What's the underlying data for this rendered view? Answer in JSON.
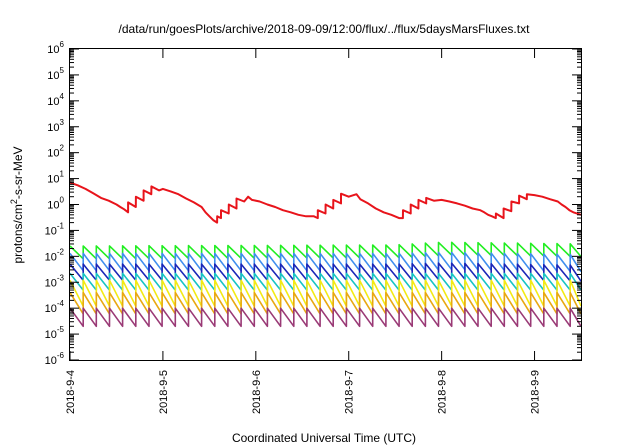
{
  "chart_data": {
    "type": "line",
    "title": "/data/run/goesPlots/archive/2018-09-09/12:00/flux/../flux/5daysMarsFluxes.txt",
    "xlabel": "Coordinated Universal Time (UTC)",
    "ylabel": "protons/cm2-s-sr-MeV",
    "ylabel_parts": {
      "base": "protons/cm",
      "sup": "2",
      "rest": "-s-sr-MeV"
    },
    "y_scale": "log",
    "ylim": [
      1e-06,
      1000000.0
    ],
    "xlim": [
      "2018-09-04T00:00",
      "2018-09-09T12:00"
    ],
    "grid": false,
    "legend": "none",
    "x_ticks": [
      {
        "x": "2018-09-04T00:00",
        "label": "2018-9-4"
      },
      {
        "x": "2018-09-05T00:00",
        "label": "2018-9-5"
      },
      {
        "x": "2018-09-06T00:00",
        "label": "2018-9-6"
      },
      {
        "x": "2018-09-07T00:00",
        "label": "2018-9-7"
      },
      {
        "x": "2018-09-08T00:00",
        "label": "2018-9-8"
      },
      {
        "x": "2018-09-09T00:00",
        "label": "2018-9-9"
      }
    ],
    "y_ticks": [
      {
        "y": 1e-06,
        "base": "10",
        "exp": "-6"
      },
      {
        "y": 1e-05,
        "base": "10",
        "exp": "-5"
      },
      {
        "y": 0.0001,
        "base": "10",
        "exp": "-4"
      },
      {
        "y": 0.001,
        "base": "10",
        "exp": "-3"
      },
      {
        "y": 0.01,
        "base": "10",
        "exp": "-2"
      },
      {
        "y": 0.1,
        "base": "10",
        "exp": "-1"
      },
      {
        "y": 1,
        "base": "10",
        "exp": "0"
      },
      {
        "y": 10,
        "base": "10",
        "exp": "1"
      },
      {
        "y": 100,
        "base": "10",
        "exp": "2"
      },
      {
        "y": 1000.0,
        "base": "10",
        "exp": "3"
      },
      {
        "y": 10000.0,
        "base": "10",
        "exp": "4"
      },
      {
        "y": 100000.0,
        "base": "10",
        "exp": "5"
      },
      {
        "y": 1000000.0,
        "base": "10",
        "exp": "6"
      }
    ],
    "series": [
      {
        "color": "#e8141b",
        "points": [
          [
            "2018-09-04T00:00",
            7
          ],
          [
            "2018-09-04T02:00",
            5.5
          ],
          [
            "2018-09-04T04:00",
            4
          ],
          [
            "2018-09-04T06:00",
            2.7
          ],
          [
            "2018-09-04T08:00",
            1.8
          ],
          [
            "2018-09-04T10:00",
            1.4
          ],
          [
            "2018-09-04T12:00",
            1
          ],
          [
            "2018-09-04T13:00",
            0.8
          ],
          [
            "2018-09-04T14:00",
            0.65
          ],
          [
            "2018-09-04T15:00",
            0.5
          ],
          [
            "2018-09-04T15:01",
            1.2
          ],
          [
            "2018-09-04T17:00",
            0.8
          ],
          [
            "2018-09-04T17:01",
            2
          ],
          [
            "2018-09-04T19:00",
            1.4
          ],
          [
            "2018-09-04T19:01",
            3.5
          ],
          [
            "2018-09-04T21:00",
            2.5
          ],
          [
            "2018-09-04T21:01",
            5
          ],
          [
            "2018-09-04T23:00",
            3.5
          ],
          [
            "2018-09-05T00:00",
            4
          ],
          [
            "2018-09-05T02:00",
            3.2
          ],
          [
            "2018-09-05T04:00",
            2.5
          ],
          [
            "2018-09-05T06:00",
            1.7
          ],
          [
            "2018-09-05T08:00",
            1.2
          ],
          [
            "2018-09-05T10:00",
            0.8
          ],
          [
            "2018-09-05T11:00",
            0.5
          ],
          [
            "2018-09-05T12:00",
            0.35
          ],
          [
            "2018-09-05T13:00",
            0.25
          ],
          [
            "2018-09-05T14:00",
            0.2
          ],
          [
            "2018-09-05T14:01",
            0.35
          ],
          [
            "2018-09-05T15:00",
            0.3
          ],
          [
            "2018-09-05T15:01",
            0.6
          ],
          [
            "2018-09-05T17:00",
            0.45
          ],
          [
            "2018-09-05T17:01",
            1
          ],
          [
            "2018-09-05T19:00",
            0.7
          ],
          [
            "2018-09-05T19:01",
            1.7
          ],
          [
            "2018-09-05T21:00",
            1.3
          ],
          [
            "2018-09-05T22:00",
            2
          ],
          [
            "2018-09-05T23:00",
            1.5
          ],
          [
            "2018-09-06T01:00",
            1.3
          ],
          [
            "2018-09-06T03:00",
            1
          ],
          [
            "2018-09-06T05:00",
            0.8
          ],
          [
            "2018-09-06T07:00",
            0.6
          ],
          [
            "2018-09-06T09:00",
            0.5
          ],
          [
            "2018-09-06T11:00",
            0.4
          ],
          [
            "2018-09-06T13:00",
            0.35
          ],
          [
            "2018-09-06T15:00",
            0.35
          ],
          [
            "2018-09-06T16:00",
            0.3
          ],
          [
            "2018-09-06T16:01",
            0.6
          ],
          [
            "2018-09-06T18:00",
            0.45
          ],
          [
            "2018-09-06T18:01",
            1
          ],
          [
            "2018-09-06T20:00",
            0.7
          ],
          [
            "2018-09-06T20:01",
            1.5
          ],
          [
            "2018-09-06T22:00",
            1.1
          ],
          [
            "2018-09-06T22:01",
            2.6
          ],
          [
            "2018-09-07T00:00",
            2
          ],
          [
            "2018-09-07T02:00",
            2.5
          ],
          [
            "2018-09-07T03:00",
            1.6
          ],
          [
            "2018-09-07T05:00",
            1.1
          ],
          [
            "2018-09-07T07:00",
            0.7
          ],
          [
            "2018-09-07T09:00",
            0.5
          ],
          [
            "2018-09-07T11:00",
            0.4
          ],
          [
            "2018-09-07T13:00",
            0.3
          ],
          [
            "2018-09-07T14:00",
            0.3
          ],
          [
            "2018-09-07T14:01",
            0.6
          ],
          [
            "2018-09-07T16:00",
            0.45
          ],
          [
            "2018-09-07T16:01",
            1
          ],
          [
            "2018-09-07T18:00",
            0.7
          ],
          [
            "2018-09-07T18:01",
            1.5
          ],
          [
            "2018-09-07T20:00",
            1.1
          ],
          [
            "2018-09-07T20:01",
            1.8
          ],
          [
            "2018-09-07T22:00",
            1.4
          ],
          [
            "2018-09-08T00:00",
            1.5
          ],
          [
            "2018-09-08T02:00",
            1.3
          ],
          [
            "2018-09-08T04:00",
            1.1
          ],
          [
            "2018-09-08T06:00",
            0.9
          ],
          [
            "2018-09-08T08:00",
            0.7
          ],
          [
            "2018-09-08T10:00",
            0.6
          ],
          [
            "2018-09-08T11:00",
            0.5
          ],
          [
            "2018-09-08T12:00",
            0.4
          ],
          [
            "2018-09-08T13:00",
            0.35
          ],
          [
            "2018-09-08T14:00",
            0.3
          ],
          [
            "2018-09-08T14:01",
            0.45
          ],
          [
            "2018-09-08T16:00",
            0.3
          ],
          [
            "2018-09-08T16:01",
            0.7
          ],
          [
            "2018-09-08T18:00",
            0.55
          ],
          [
            "2018-09-08T18:01",
            1.3
          ],
          [
            "2018-09-08T20:00",
            1.1
          ],
          [
            "2018-09-08T20:01",
            2.2
          ],
          [
            "2018-09-08T22:00",
            1.6
          ],
          [
            "2018-09-08T22:01",
            2.5
          ],
          [
            "2018-09-09T00:00",
            2.3
          ],
          [
            "2018-09-09T02:00",
            2
          ],
          [
            "2018-09-09T04:00",
            1.6
          ],
          [
            "2018-09-09T06:00",
            1.3
          ],
          [
            "2018-09-09T07:00",
            1
          ],
          [
            "2018-09-09T08:00",
            0.8
          ],
          [
            "2018-09-09T09:00",
            0.6
          ],
          [
            "2018-09-09T10:00",
            0.5
          ],
          [
            "2018-09-09T12:00",
            0.4
          ]
        ]
      },
      {
        "color": "#22ee22",
        "sawtooth": {
          "period_h": 3.4,
          "lo": 0.008,
          "hi": 0.025,
          "drift": [
            [
              "2018-09-04T00:00",
              1
            ],
            [
              "2018-09-07T12:00",
              1.1
            ],
            [
              "2018-09-08T00:00",
              1.4
            ],
            [
              "2018-09-09T12:00",
              1.2
            ]
          ]
        }
      },
      {
        "color": "#3f8eee",
        "sawtooth": {
          "period_h": 3.4,
          "lo": 0.0028,
          "hi": 0.013,
          "drift": [
            [
              "2018-09-04T00:00",
              1
            ],
            [
              "2018-09-07T12:00",
              1
            ],
            [
              "2018-09-08T00:00",
              1.1
            ],
            [
              "2018-09-09T12:00",
              0.9
            ]
          ]
        }
      },
      {
        "color": "#1a26b8",
        "sawtooth": {
          "period_h": 3.4,
          "lo": 0.0012,
          "hi": 0.005,
          "drift": [
            [
              "2018-09-04T00:00",
              1
            ],
            [
              "2018-09-07T12:00",
              1
            ],
            [
              "2018-09-08T00:00",
              1.1
            ],
            [
              "2018-09-09T12:00",
              0.9
            ]
          ]
        }
      },
      {
        "color": "#17c4c4",
        "sawtooth": {
          "period_h": 3.4,
          "lo": 0.0005,
          "hi": 0.0022,
          "drift": [
            [
              "2018-09-04T00:00",
              1
            ],
            [
              "2018-09-09T12:00",
              1
            ]
          ]
        }
      },
      {
        "color": "#f3ea14",
        "sawtooth": {
          "period_h": 3.4,
          "lo": 0.00012,
          "hi": 0.0012,
          "drift": [
            [
              "2018-09-04T00:00",
              1
            ],
            [
              "2018-09-09T12:00",
              1
            ]
          ]
        }
      },
      {
        "color": "#e8a812",
        "sawtooth": {
          "period_h": 3.4,
          "lo": 6e-05,
          "hi": 0.0004,
          "drift": [
            [
              "2018-09-04T00:00",
              1
            ],
            [
              "2018-09-09T12:00",
              1
            ]
          ]
        }
      },
      {
        "color": "#9a3a76",
        "sawtooth": {
          "period_h": 3.4,
          "lo": 2e-05,
          "hi": 0.0001,
          "drift": [
            [
              "2018-09-04T00:00",
              1
            ],
            [
              "2018-09-09T12:00",
              1
            ]
          ]
        }
      }
    ]
  }
}
